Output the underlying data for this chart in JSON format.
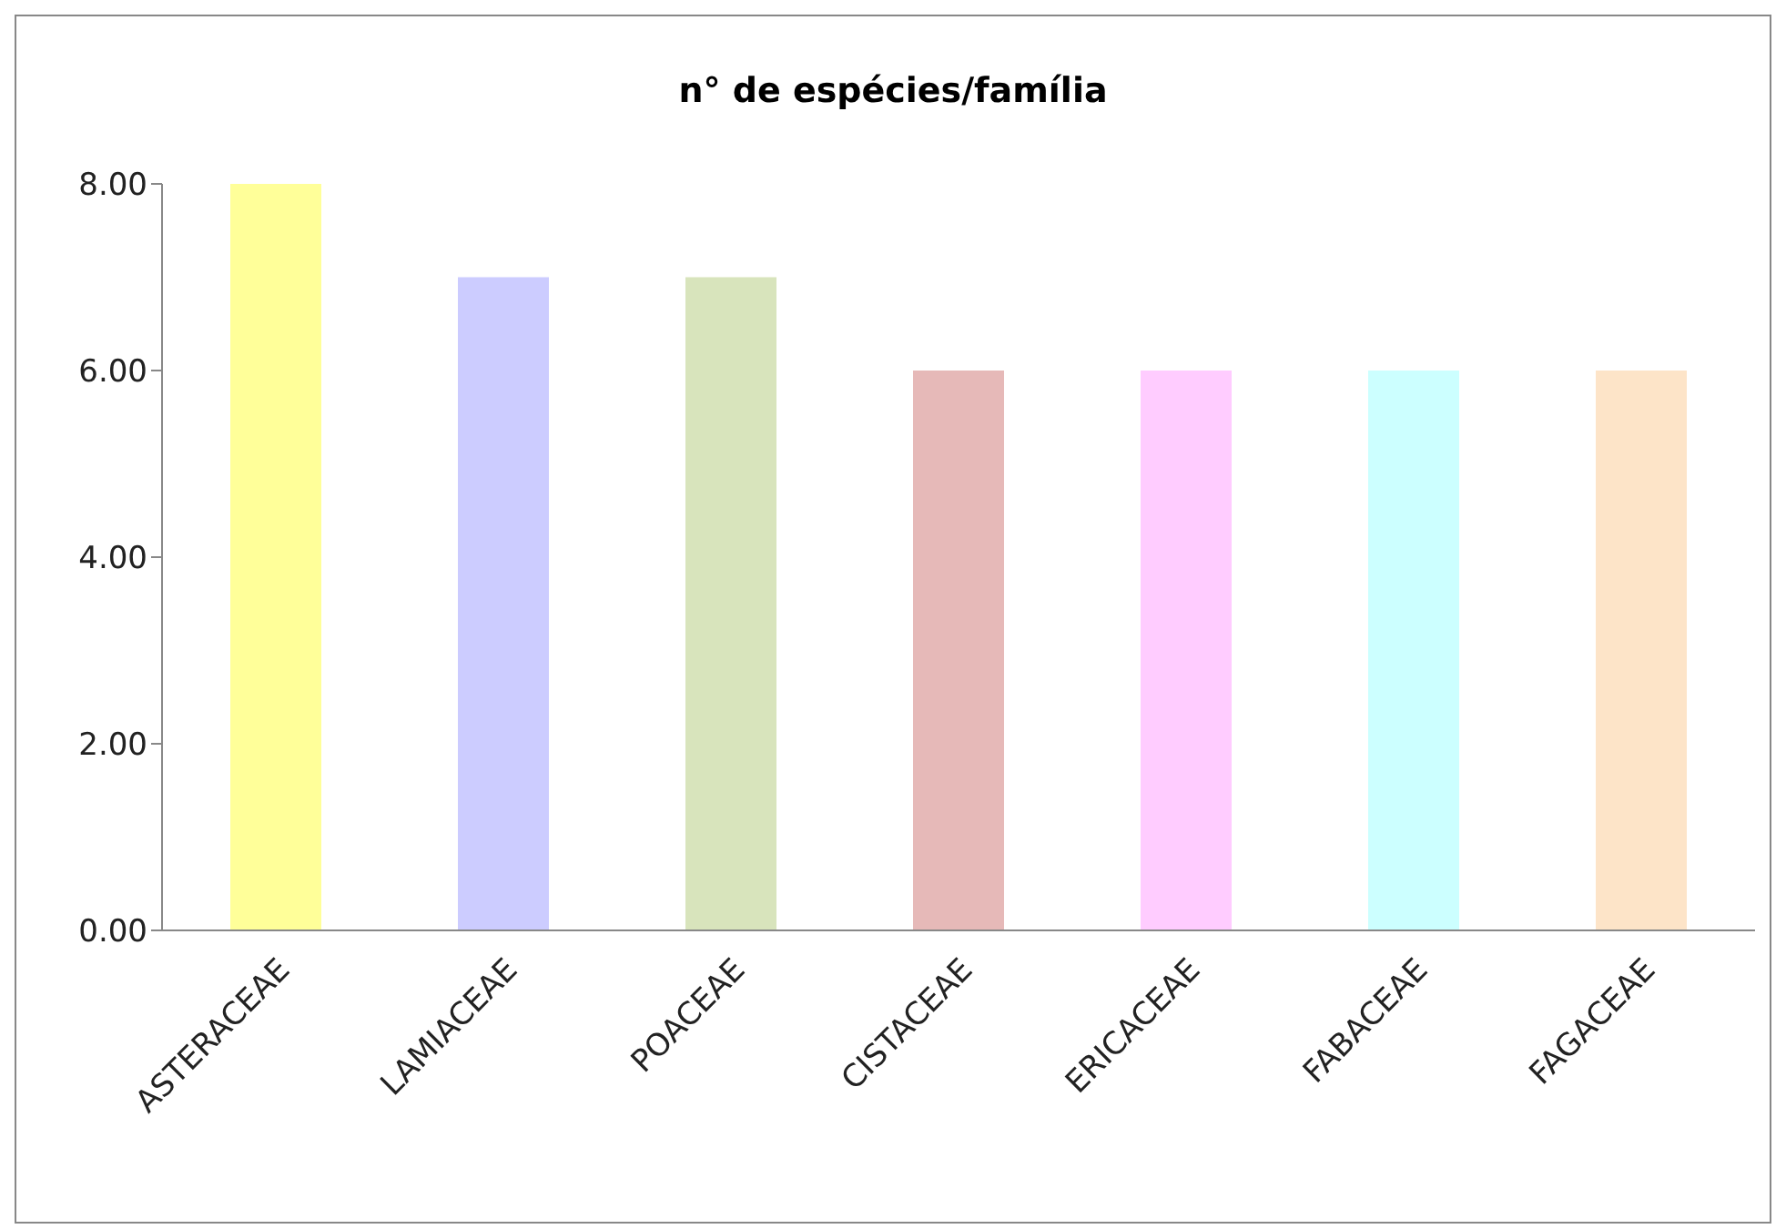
{
  "chart_data": {
    "type": "bar",
    "title": "n° de espécies/família",
    "categories": [
      "ASTERACEAE",
      "LAMIACEAE",
      "POACEAE",
      "CISTACEAE",
      "ERICACEAE",
      "FABACEAE",
      "FAGACEAE"
    ],
    "values": [
      8,
      7,
      7,
      6,
      6,
      6,
      6
    ],
    "colors": [
      "#ffff99",
      "#ccccff",
      "#d8e4bc",
      "#e6b9b8",
      "#ffccff",
      "#ccffff",
      "#fde4c8"
    ],
    "ylim": [
      0,
      8
    ],
    "yticks": [
      {
        "value": 0,
        "label": "0.00"
      },
      {
        "value": 2,
        "label": "2.00"
      },
      {
        "value": 4,
        "label": "4.00"
      },
      {
        "value": 6,
        "label": "6.00"
      },
      {
        "value": 8,
        "label": "8.00"
      }
    ],
    "grid": false,
    "legend": false
  }
}
